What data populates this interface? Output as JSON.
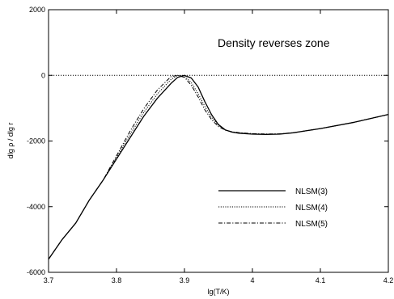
{
  "chart_data": {
    "type": "line",
    "title": "",
    "xlabel": "lg(T/K)",
    "ylabel": "dlg ρ / dlg r",
    "xlim": [
      3.7,
      4.2
    ],
    "ylim": [
      -6000,
      2000
    ],
    "xticks": [
      3.7,
      3.8,
      3.9,
      4.0,
      4.1,
      4.2
    ],
    "xtick_labels": [
      "3.7",
      "3.8",
      "3.9",
      "4",
      "4.1",
      "4.2"
    ],
    "yticks": [
      -6000,
      -4000,
      -2000,
      0,
      2000
    ],
    "ytick_labels": [
      "-6000",
      "-4000",
      "-2000",
      "0",
      "2000"
    ],
    "grid": false,
    "reference_line": {
      "y": 0,
      "style": "dotted"
    },
    "annotation": "Density reverses zone",
    "legend_position": "lower-right",
    "series": [
      {
        "name": "NLSM(3)",
        "style": "solid",
        "x": [
          3.7,
          3.72,
          3.74,
          3.76,
          3.78,
          3.8,
          3.82,
          3.84,
          3.86,
          3.88,
          3.89,
          3.9,
          3.91,
          3.92,
          3.93,
          3.94,
          3.95,
          3.96,
          3.97,
          3.98,
          4.0,
          4.02,
          4.04,
          4.06,
          4.1,
          4.15,
          4.2
        ],
        "y": [
          -5600,
          -5000,
          -4500,
          -3800,
          -3200,
          -2550,
          -1900,
          -1250,
          -700,
          -250,
          -60,
          0,
          -80,
          -350,
          -800,
          -1200,
          -1500,
          -1660,
          -1730,
          -1760,
          -1790,
          -1800,
          -1790,
          -1750,
          -1620,
          -1430,
          -1190
        ]
      },
      {
        "name": "NLSM(4)",
        "style": "dotted",
        "x": [
          3.7,
          3.72,
          3.74,
          3.76,
          3.78,
          3.8,
          3.82,
          3.84,
          3.86,
          3.88,
          3.89,
          3.9,
          3.91,
          3.92,
          3.93,
          3.94,
          3.95,
          3.96,
          3.97,
          3.98,
          4.0,
          4.02,
          4.04,
          4.06,
          4.1,
          4.15,
          4.2
        ],
        "y": [
          -5600,
          -5000,
          -4500,
          -3800,
          -3200,
          -2500,
          -1800,
          -1130,
          -570,
          -130,
          0,
          -20,
          -220,
          -550,
          -950,
          -1280,
          -1520,
          -1660,
          -1720,
          -1750,
          -1780,
          -1790,
          -1785,
          -1750,
          -1620,
          -1430,
          -1190
        ]
      },
      {
        "name": "NLSM(5)",
        "style": "dash-dot",
        "x": [
          3.7,
          3.72,
          3.74,
          3.76,
          3.78,
          3.8,
          3.82,
          3.84,
          3.86,
          3.88,
          3.89,
          3.9,
          3.91,
          3.92,
          3.93,
          3.94,
          3.95,
          3.96,
          3.97,
          3.98,
          4.0,
          4.02,
          4.04,
          4.06,
          4.1,
          4.15,
          4.2
        ],
        "y": [
          -5600,
          -5000,
          -4500,
          -3800,
          -3200,
          -2450,
          -1700,
          -1020,
          -450,
          -40,
          0,
          -60,
          -300,
          -650,
          -1050,
          -1350,
          -1560,
          -1670,
          -1720,
          -1745,
          -1775,
          -1785,
          -1780,
          -1750,
          -1620,
          -1430,
          -1190
        ]
      }
    ]
  }
}
